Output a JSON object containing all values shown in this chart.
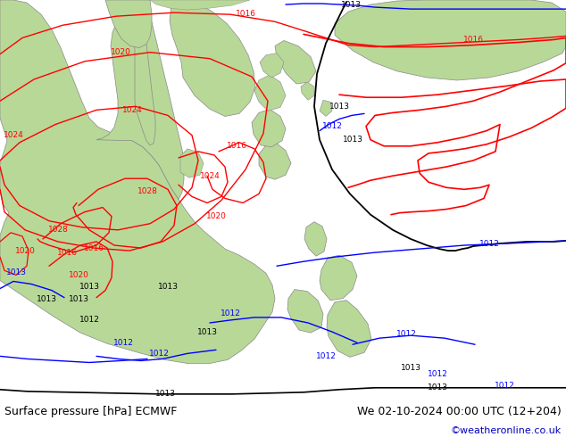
{
  "title_left": "Surface pressure [hPa] ECMWF",
  "title_right": "We 02-10-2024 00:00 UTC (12+204)",
  "credit": "©weatheronline.co.uk",
  "ocean_color": "#d8e0e8",
  "land_green": "#b8d898",
  "land_gray": "#b8b8b8",
  "bottom_bg": "#ffffff",
  "credit_color": "#0000bb",
  "title_fontsize": 9,
  "credit_fontsize": 8
}
